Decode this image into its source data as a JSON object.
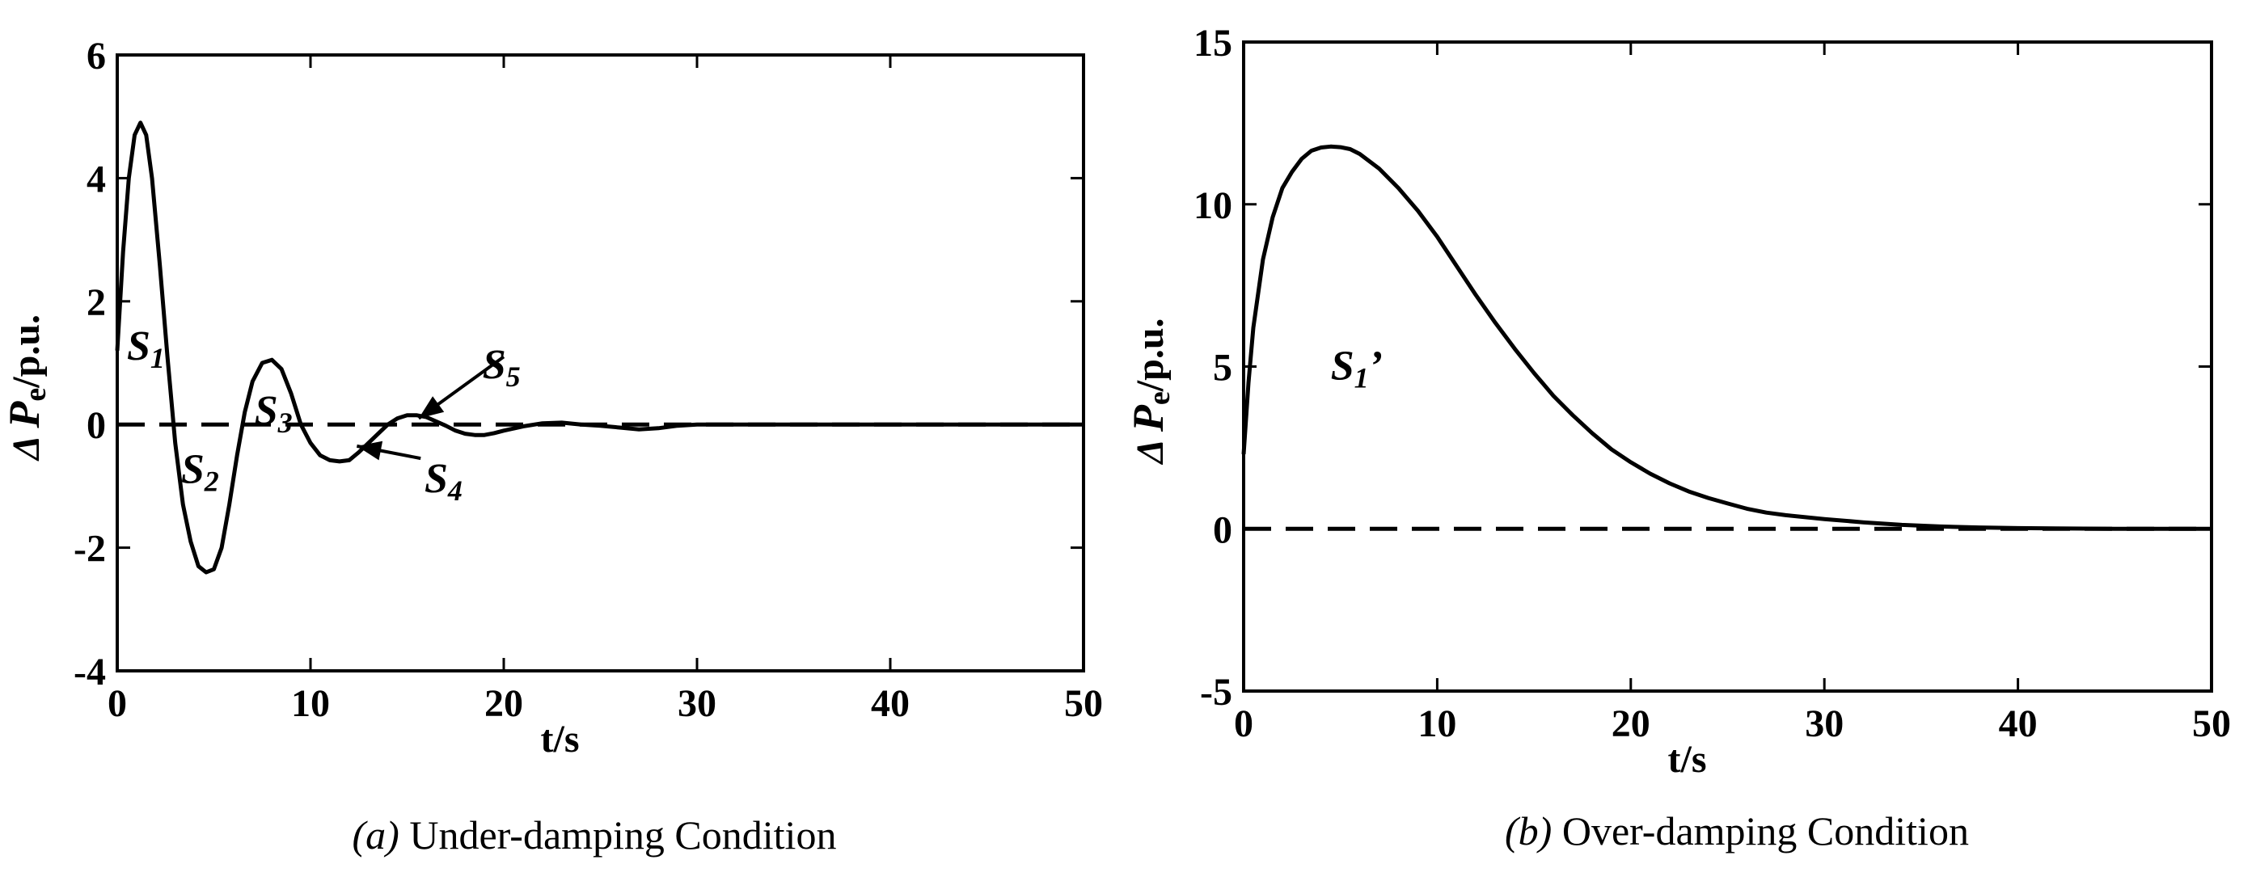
{
  "figure_captions": [
    {
      "label": "(a)",
      "text": " Under-damping Condition"
    },
    {
      "label": "(b)",
      "text": " Over-damping Condition"
    }
  ],
  "chart_data": [
    {
      "type": "line",
      "title": "",
      "xlabel": "t/s",
      "ylabel": {
        "delta": "Δ",
        "symbol": "P",
        "subscript": "e",
        "unit": "/p.u."
      },
      "xlim": [
        0,
        50
      ],
      "ylim": [
        -4,
        6
      ],
      "xticks": [
        0,
        10,
        20,
        30,
        40,
        50
      ],
      "yticks": [
        -4,
        -2,
        0,
        2,
        4,
        6
      ],
      "grid": false,
      "series": [
        {
          "style": "solid",
          "color": "#000000",
          "x": [
            0,
            0.3,
            0.6,
            0.9,
            1.2,
            1.5,
            1.8,
            2.2,
            2.6,
            3.0,
            3.4,
            3.8,
            4.2,
            4.6,
            5.0,
            5.4,
            5.8,
            6.2,
            6.6,
            7.0,
            7.5,
            8.0,
            8.5,
            9.0,
            9.5,
            10.0,
            10.5,
            11.0,
            11.5,
            12.0,
            12.5,
            13.0,
            13.5,
            14.0,
            14.5,
            15.0,
            15.5,
            16.0,
            16.5,
            17.0,
            17.5,
            18.0,
            18.5,
            19.0,
            19.5,
            20.0,
            21.0,
            22.0,
            23.0,
            24.0,
            25.0,
            26.0,
            27.0,
            28.0,
            29.0,
            30.0,
            35.0,
            40.0,
            45.0,
            50.0
          ],
          "y": [
            1.2,
            2.8,
            4.0,
            4.7,
            4.9,
            4.7,
            4.0,
            2.6,
            1.1,
            -0.3,
            -1.3,
            -1.9,
            -2.3,
            -2.4,
            -2.35,
            -2.0,
            -1.3,
            -0.5,
            0.2,
            0.7,
            1.0,
            1.05,
            0.9,
            0.5,
            0.0,
            -0.3,
            -0.5,
            -0.58,
            -0.6,
            -0.58,
            -0.45,
            -0.3,
            -0.15,
            0.0,
            0.1,
            0.15,
            0.15,
            0.12,
            0.05,
            -0.02,
            -0.1,
            -0.15,
            -0.17,
            -0.17,
            -0.14,
            -0.1,
            -0.03,
            0.02,
            0.03,
            0.0,
            -0.02,
            -0.05,
            -0.08,
            -0.06,
            -0.02,
            0.0,
            0.0,
            0.0,
            0.0,
            0.0
          ]
        },
        {
          "style": "dashed",
          "color": "#000000",
          "x": [
            0,
            50
          ],
          "y": [
            0,
            0
          ]
        }
      ],
      "annotations": [
        {
          "text": "S",
          "sub": "1",
          "x": 0.5,
          "y": 1.05
        },
        {
          "text": "S",
          "sub": "2",
          "x": 3.3,
          "y": -0.95
        },
        {
          "text": "S",
          "sub": "3",
          "x": 7.1,
          "y": 0.0
        },
        {
          "text": "S",
          "sub": "4",
          "x": 15.9,
          "y": -1.1
        },
        {
          "text": "S",
          "sub": "5",
          "x": 18.9,
          "y": 0.75
        }
      ],
      "arrows": [
        {
          "from": [
            20.0,
            1.1
          ],
          "to": [
            15.6,
            0.1
          ]
        },
        {
          "from": [
            15.7,
            -0.55
          ],
          "to": [
            12.4,
            -0.35
          ]
        }
      ]
    },
    {
      "type": "line",
      "title": "",
      "xlabel": "t/s",
      "ylabel": {
        "delta": "Δ",
        "symbol": "P",
        "subscript": "e",
        "unit": "/p.u."
      },
      "xlim": [
        0,
        50
      ],
      "ylim": [
        -5,
        15
      ],
      "xticks": [
        0,
        10,
        20,
        30,
        40,
        50
      ],
      "yticks": [
        -5,
        0,
        5,
        10,
        15
      ],
      "grid": false,
      "series": [
        {
          "style": "solid",
          "color": "#000000",
          "x": [
            0,
            0.25,
            0.5,
            1.0,
            1.5,
            2.0,
            2.5,
            3.0,
            3.5,
            4.0,
            4.5,
            5.0,
            5.5,
            6.0,
            7.0,
            8.0,
            9.0,
            10.0,
            11.0,
            12.0,
            13.0,
            14.0,
            15.0,
            16.0,
            17.0,
            18.0,
            19.0,
            20.0,
            21.0,
            22.0,
            23.0,
            24.0,
            25.0,
            26.0,
            27.0,
            28.0,
            30.0,
            32.0,
            34.0,
            36.0,
            38.0,
            40.0,
            45.0,
            50.0
          ],
          "y": [
            2.3,
            4.5,
            6.2,
            8.3,
            9.6,
            10.5,
            11.0,
            11.4,
            11.65,
            11.75,
            11.78,
            11.76,
            11.7,
            11.55,
            11.1,
            10.5,
            9.8,
            9.0,
            8.1,
            7.2,
            6.35,
            5.55,
            4.8,
            4.1,
            3.5,
            2.95,
            2.45,
            2.05,
            1.7,
            1.4,
            1.15,
            0.95,
            0.78,
            0.62,
            0.5,
            0.42,
            0.3,
            0.2,
            0.12,
            0.07,
            0.04,
            0.02,
            0.0,
            0.0
          ]
        },
        {
          "style": "dashed",
          "color": "#000000",
          "x": [
            0,
            50
          ],
          "y": [
            0,
            0
          ]
        }
      ],
      "annotations": [
        {
          "text": "S",
          "sub": "1",
          "suffix": "’",
          "x": 4.5,
          "y": 4.6
        }
      ],
      "arrows": []
    }
  ]
}
